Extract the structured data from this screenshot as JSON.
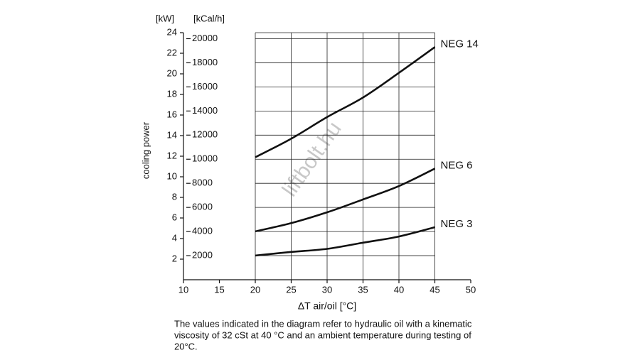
{
  "chart_data": {
    "type": "line",
    "ylabel": "cooling power",
    "y_unit": "[kW]",
    "y2_unit": "[kCal/h]",
    "xlabel": "ΔT air/oil [°C]",
    "watermark": "liftbolt.hu",
    "note": [
      "The values indicated in the diagram refer to hydraulic oil with a kinematic",
      "viscosity of 32 cSt at 40 °C and an ambient temperature during testing of",
      "20°C."
    ],
    "x": [
      20,
      25,
      30,
      35,
      40,
      45
    ],
    "series": [
      {
        "name": "NEG 14",
        "color": "#111111",
        "values": [
          11.9,
          13.7,
          15.8,
          17.7,
          20.1,
          22.6
        ]
      },
      {
        "name": "NEG 6",
        "color": "#111111",
        "values": [
          4.7,
          5.5,
          6.55,
          7.8,
          9.1,
          10.8
        ]
      },
      {
        "name": "NEG 3",
        "color": "#111111",
        "values": [
          2.35,
          2.7,
          3.0,
          3.6,
          4.2,
          5.1
        ]
      }
    ],
    "xlim": [
      10,
      50
    ],
    "xticks": [
      10,
      15,
      20,
      25,
      30,
      35,
      40,
      45,
      50
    ],
    "ylim": [
      0,
      24
    ],
    "yticks": [
      2,
      4,
      6,
      8,
      10,
      12,
      14,
      16,
      18,
      20,
      22,
      24
    ],
    "y2lim": [
      0,
      20500
    ],
    "y2ticks": [
      2000,
      4000,
      6000,
      8000,
      10000,
      12000,
      14000,
      16000,
      18000,
      20000
    ],
    "grid": true
  }
}
